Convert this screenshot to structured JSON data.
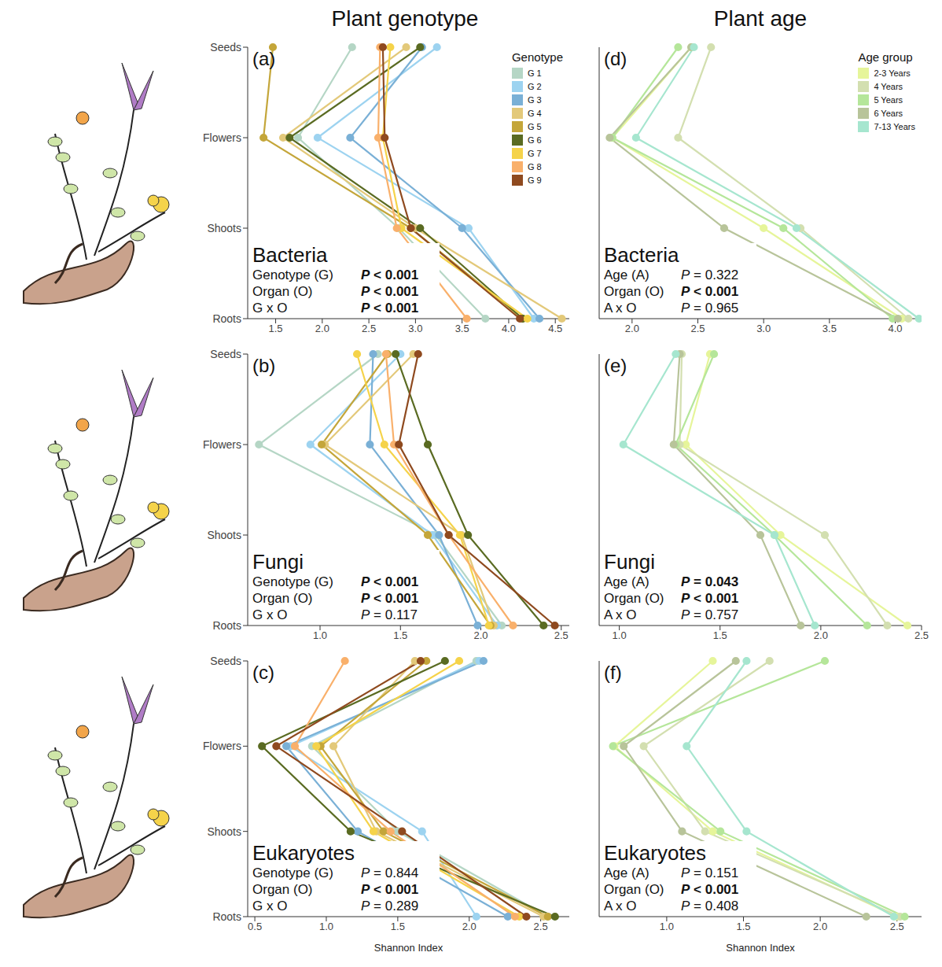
{
  "column_titles": [
    "Plant genotype",
    "Plant age"
  ],
  "chart_data": [
    {
      "type": "line",
      "panel": "(a)",
      "title": "Bacteria",
      "categories": [
        "Seeds",
        "Flowers",
        "Shoots",
        "Roots"
      ],
      "xlim": [
        1.2,
        4.65
      ],
      "xticks": [
        1.5,
        {
          "value": 2,
          "label": "2.0"
        },
        2.5,
        {
          "value": 3,
          "label": "3.0"
        },
        3.5,
        {
          "value": 4,
          "label": "4.0"
        },
        4.5
      ],
      "grid": false,
      "marker": "circle",
      "legend": "upper right",
      "legend_title": "Genotype",
      "series": [
        {
          "name": "G 1",
          "color": "#b5d6c5",
          "values": [
            2.32,
            1.74,
            2.82,
            3.75
          ]
        },
        {
          "name": "G 2",
          "color": "#9dd3f0",
          "values": [
            3.23,
            1.95,
            3.57,
            4.27
          ]
        },
        {
          "name": "G 3",
          "color": "#7ab0d6",
          "values": [
            3.07,
            2.3,
            3.5,
            4.33
          ]
        },
        {
          "name": "G 4",
          "color": "#e3c97a",
          "values": [
            2.9,
            1.58,
            3.0,
            4.57
          ]
        },
        {
          "name": "G 5",
          "color": "#c4a63a",
          "values": [
            1.47,
            1.37,
            2.95,
            4.15
          ]
        },
        {
          "name": "G 6",
          "color": "#5a6b22",
          "values": [
            3.05,
            1.65,
            3.05,
            4.15
          ]
        },
        {
          "name": "G 7",
          "color": "#f5d34a",
          "values": [
            2.73,
            2.65,
            2.85,
            4.2
          ]
        },
        {
          "name": "G 8",
          "color": "#f9b06b",
          "values": [
            2.62,
            2.6,
            2.8,
            3.55
          ]
        },
        {
          "name": "G 9",
          "color": "#8f4a1f",
          "values": [
            2.65,
            2.67,
            2.95,
            4.12
          ]
        }
      ],
      "annotations": [
        {
          "label": "Genotype (G)",
          "text": "P < 0.001"
        },
        {
          "label": "Organ (O)",
          "text": "P < 0.001"
        },
        {
          "label": "G x O",
          "text": "P < 0.001"
        }
      ]
    },
    {
      "type": "line",
      "panel": "(b)",
      "title": "Fungi",
      "categories": [
        "Seeds",
        "Flowers",
        "Shoots",
        "Roots"
      ],
      "xlim": [
        0.55,
        2.55
      ],
      "xticks": [
        {
          "value": 1,
          "label": "1.0"
        },
        1.5,
        {
          "value": 2,
          "label": "2.0"
        },
        2.5
      ],
      "grid": false,
      "marker": "circle",
      "series": [
        {
          "name": "G 1",
          "color": "#b5d6c5",
          "values": [
            1.36,
            0.62,
            1.72,
            2.13
          ]
        },
        {
          "name": "G 2",
          "color": "#9dd3f0",
          "values": [
            1.5,
            0.94,
            1.7,
            2.1
          ]
        },
        {
          "name": "G 3",
          "color": "#7ab0d6",
          "values": [
            1.33,
            1.31,
            1.74,
            1.98
          ]
        },
        {
          "name": "G 4",
          "color": "#e3c97a",
          "values": [
            1.58,
            1.03,
            1.88,
            2.08
          ]
        },
        {
          "name": "G 5",
          "color": "#c4a63a",
          "values": [
            1.42,
            1.01,
            1.67,
            2.06
          ]
        },
        {
          "name": "G 6",
          "color": "#5a6b22",
          "values": [
            1.47,
            1.67,
            1.92,
            2.39
          ]
        },
        {
          "name": "G 7",
          "color": "#f5d34a",
          "values": [
            1.23,
            1.4,
            1.87,
            2.05
          ]
        },
        {
          "name": "G 8",
          "color": "#f9b06b",
          "values": [
            1.41,
            1.46,
            1.8,
            2.2
          ]
        },
        {
          "name": "G 9",
          "color": "#8f4a1f",
          "values": [
            1.61,
            1.49,
            1.8,
            2.46
          ]
        }
      ],
      "annotations": [
        {
          "label": "Genotype (G)",
          "text": "P < 0.001"
        },
        {
          "label": "Organ (O)",
          "text": "P < 0.001"
        },
        {
          "label": "G x O",
          "text": "P = 0.117"
        }
      ]
    },
    {
      "type": "line",
      "panel": "(c)",
      "title": "Eukaryotes",
      "x_label": "Shannon Index",
      "categories": [
        "Seeds",
        "Flowers",
        "Shoots",
        "Roots"
      ],
      "xlim": [
        0.45,
        2.7
      ],
      "xticks": [
        0.5,
        {
          "value": 1,
          "label": "1.0"
        },
        1.5,
        {
          "value": 2,
          "label": "2.0"
        },
        2.5
      ],
      "grid": false,
      "marker": "circle",
      "series": [
        {
          "name": "G 1",
          "color": "#b5d6c5",
          "values": [
            2.05,
            0.9,
            1.5,
            2.55
          ]
        },
        {
          "name": "G 2",
          "color": "#9dd3f0",
          "values": [
            2.07,
            0.75,
            1.67,
            2.05
          ]
        },
        {
          "name": "G 3",
          "color": "#7ab0d6",
          "values": [
            2.1,
            0.72,
            1.22,
            2.27
          ]
        },
        {
          "name": "G 4",
          "color": "#e3c97a",
          "values": [
            1.62,
            1.05,
            1.35,
            2.52
          ]
        },
        {
          "name": "G 5",
          "color": "#c4a63a",
          "values": [
            1.7,
            0.96,
            1.4,
            2.55
          ]
        },
        {
          "name": "G 6",
          "color": "#5a6b22",
          "values": [
            1.83,
            0.55,
            1.17,
            2.6
          ]
        },
        {
          "name": "G 7",
          "color": "#f5d34a",
          "values": [
            1.93,
            0.93,
            1.33,
            2.35
          ]
        },
        {
          "name": "G 8",
          "color": "#f9b06b",
          "values": [
            1.13,
            0.78,
            1.45,
            2.32
          ]
        },
        {
          "name": "G 9",
          "color": "#8f4a1f",
          "values": [
            1.66,
            0.65,
            1.53,
            2.4
          ]
        }
      ],
      "annotations": [
        {
          "label": "Genotype (G)",
          "text": "P = 0.844"
        },
        {
          "label": "Organ (O)",
          "text": "P < 0.001"
        },
        {
          "label": "G x O",
          "text": "P = 0.289"
        }
      ]
    },
    {
      "type": "line",
      "panel": "(d)",
      "title": "Bacteria",
      "categories": [
        "Seeds",
        "Flowers",
        "Shoots",
        "Roots"
      ],
      "tick_labels": "x",
      "xlim": [
        1.75,
        4.2
      ],
      "xticks": [
        {
          "value": 2,
          "label": "2.0"
        },
        2.5,
        {
          "value": 3,
          "label": "3.0"
        },
        3.5,
        {
          "value": 4,
          "label": "4.0"
        }
      ],
      "grid": false,
      "marker": "circle",
      "legend": "upper right",
      "legend_title": "Age group",
      "series": [
        {
          "name": "2-3 Years",
          "color": "#e6f59a",
          "values": [
            2.45,
            1.85,
            3.0,
            4.05
          ]
        },
        {
          "name": "4 Years",
          "color": "#d3dfb0",
          "values": [
            2.6,
            2.35,
            3.28,
            4.1
          ]
        },
        {
          "name": "5 Years",
          "color": "#b5e69a",
          "values": [
            2.35,
            1.85,
            3.15,
            3.98
          ]
        },
        {
          "name": "6 Years",
          "color": "#b8c49a",
          "values": [
            2.45,
            1.83,
            2.7,
            4.02
          ]
        },
        {
          "name": "7-13 Years",
          "color": "#a6e6cf",
          "values": [
            2.47,
            2.03,
            3.25,
            4.18
          ]
        }
      ],
      "annotations": [
        {
          "label": "Age (A)",
          "text": "P = 0.322"
        },
        {
          "label": "Organ (O)",
          "text": "P < 0.001"
        },
        {
          "label": "A x O",
          "text": "P = 0.965"
        }
      ]
    },
    {
      "type": "line",
      "panel": "(e)",
      "title": "Fungi",
      "categories": [
        "Seeds",
        "Flowers",
        "Shoots",
        "Roots"
      ],
      "tick_labels": "x",
      "xlim": [
        0.9,
        2.5
      ],
      "xticks": [
        {
          "value": 1,
          "label": "1.0"
        },
        1.5,
        {
          "value": 2,
          "label": "2.0"
        },
        2.5
      ],
      "grid": false,
      "marker": "circle",
      "series": [
        {
          "name": "2-3 Years",
          "color": "#e6f59a",
          "values": [
            1.45,
            1.33,
            1.8,
            2.43
          ]
        },
        {
          "name": "4 Years",
          "color": "#d3dfb0",
          "values": [
            1.31,
            1.3,
            2.02,
            2.33
          ]
        },
        {
          "name": "5 Years",
          "color": "#b5e69a",
          "values": [
            1.47,
            1.28,
            1.77,
            2.23
          ]
        },
        {
          "name": "6 Years",
          "color": "#b8c49a",
          "values": [
            1.3,
            1.27,
            1.7,
            1.9
          ]
        },
        {
          "name": "7-13 Years",
          "color": "#a6e6cf",
          "values": [
            1.28,
            1.02,
            1.77,
            1.97
          ]
        }
      ],
      "annotations": [
        {
          "label": "Age (A)",
          "text": "P = 0.043"
        },
        {
          "label": "Organ (O)",
          "text": "P < 0.001"
        },
        {
          "label": "A x O",
          "text": "P = 0.757"
        }
      ]
    },
    {
      "type": "line",
      "panel": "(f)",
      "title": "Eukaryotes",
      "x_label": "Shannon Index",
      "categories": [
        "Seeds",
        "Flowers",
        "Shoots",
        "Roots"
      ],
      "tick_labels": "x",
      "xlim": [
        0.56,
        2.66
      ],
      "xticks": [
        {
          "value": 1,
          "label": "1.0"
        },
        1.5,
        {
          "value": 2,
          "label": "2.0"
        },
        2.5
      ],
      "grid": false,
      "marker": "circle",
      "series": [
        {
          "name": "2-3 Years",
          "color": "#e6f59a",
          "values": [
            1.3,
            0.66,
            1.3,
            2.5
          ]
        },
        {
          "name": "4 Years",
          "color": "#d3dfb0",
          "values": [
            1.67,
            0.85,
            1.25,
            2.52
          ]
        },
        {
          "name": "5 Years",
          "color": "#b5e69a",
          "values": [
            2.03,
            0.65,
            1.35,
            2.55
          ]
        },
        {
          "name": "6 Years",
          "color": "#b8c49a",
          "values": [
            1.45,
            0.72,
            1.1,
            2.3
          ]
        },
        {
          "name": "7-13 Years",
          "color": "#a6e6cf",
          "values": [
            1.52,
            1.13,
            1.52,
            2.48
          ]
        }
      ],
      "annotations": [
        {
          "label": "Age (A)",
          "text": "P = 0.151"
        },
        {
          "label": "Organ (O)",
          "text": "P < 0.001"
        },
        {
          "label": "A x O",
          "text": "P = 0.408"
        }
      ]
    }
  ]
}
